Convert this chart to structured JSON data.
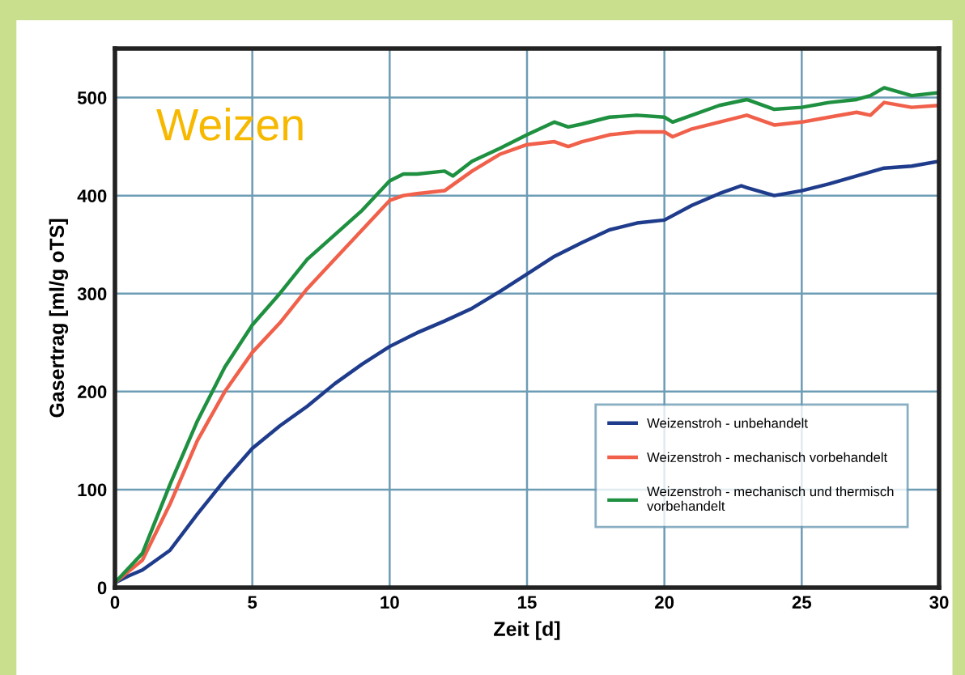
{
  "chart_data": {
    "type": "line",
    "xlabel": "Zeit [d]",
    "ylabel": "Gasertrag [ml/g oTS]",
    "annotations": [
      "Weizen"
    ],
    "xlim": [
      0,
      30
    ],
    "xticks": [
      0,
      5,
      10,
      15,
      20,
      25,
      30
    ],
    "ylim": [
      0,
      550
    ],
    "yticks": [
      0,
      100,
      200,
      300,
      400,
      500
    ],
    "grid": true,
    "legend": "bottom right",
    "marker": "none",
    "line_style": "solid",
    "series": [
      {
        "name": "Weizenstroh - unbehandelt",
        "color": "#1f3c8c",
        "x": [
          0,
          0.5,
          1,
          2,
          3,
          4,
          5,
          6,
          7,
          8,
          9,
          10,
          11,
          12,
          13,
          14,
          15,
          16,
          17,
          18,
          19,
          20,
          21,
          22,
          22.8,
          23,
          24,
          25,
          26,
          27,
          28,
          29,
          30
        ],
        "values": [
          5,
          12,
          18,
          38,
          75,
          110,
          142,
          165,
          185,
          208,
          228,
          246,
          260,
          272,
          285,
          302,
          320,
          338,
          352,
          365,
          372,
          375,
          390,
          402,
          410,
          408,
          400,
          405,
          412,
          420,
          428,
          430,
          435
        ]
      },
      {
        "name": "Weizenstroh - mechanisch vorbehandelt",
        "color": "#f0604a",
        "x": [
          0,
          1,
          2,
          3,
          4,
          5,
          6,
          7,
          8,
          9,
          10,
          10.5,
          11,
          12,
          13,
          14,
          15,
          16,
          16.5,
          17,
          18,
          19,
          20,
          20.3,
          21,
          22,
          23,
          24,
          25,
          26,
          27,
          27.5,
          28,
          29,
          30
        ],
        "values": [
          5,
          28,
          85,
          150,
          200,
          240,
          270,
          305,
          335,
          365,
          395,
          400,
          402,
          405,
          425,
          442,
          452,
          455,
          450,
          455,
          462,
          465,
          465,
          460,
          468,
          475,
          482,
          472,
          475,
          480,
          485,
          482,
          495,
          490,
          492
        ]
      },
      {
        "name": "Weizenstroh - mechanisch und thermisch\nvorbehandelt",
        "color": "#1e9040",
        "x": [
          0,
          1,
          2,
          3,
          4,
          5,
          6,
          7,
          8,
          9,
          10,
          10.5,
          11,
          12,
          12.3,
          13,
          14,
          15,
          16,
          16.5,
          17,
          18,
          19,
          20,
          20.3,
          21,
          22,
          23,
          24,
          25,
          26,
          27,
          27.5,
          28,
          29,
          30
        ],
        "values": [
          5,
          35,
          105,
          170,
          225,
          268,
          300,
          335,
          360,
          385,
          415,
          422,
          422,
          425,
          420,
          435,
          448,
          462,
          475,
          470,
          473,
          480,
          482,
          480,
          475,
          482,
          492,
          498,
          488,
          490,
          495,
          498,
          502,
          510,
          502,
          505
        ]
      }
    ]
  }
}
